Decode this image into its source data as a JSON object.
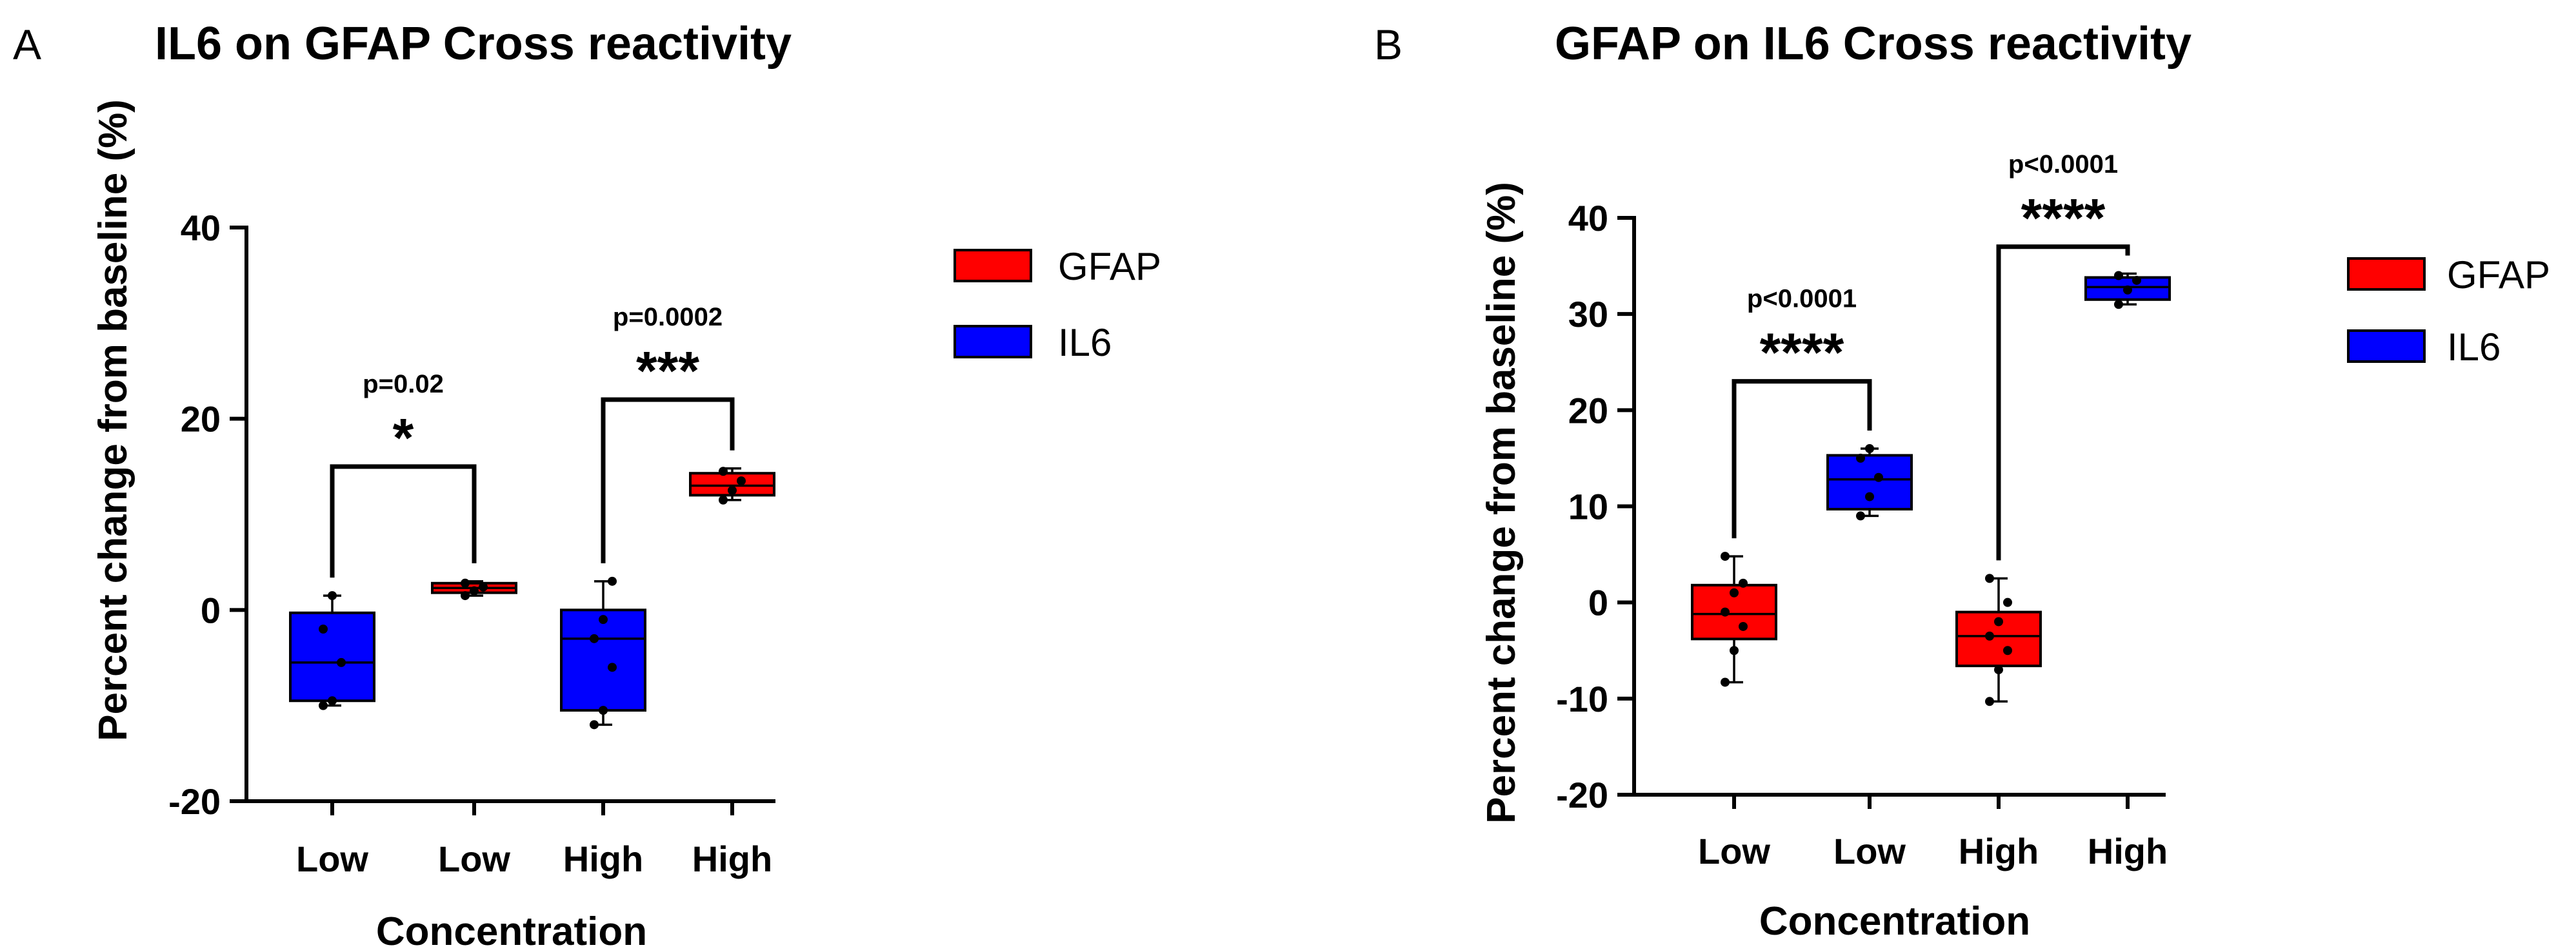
{
  "colors": {
    "GFAP": "#ff0000",
    "IL6": "#0000ff"
  },
  "chart_data": [
    {
      "type": "box",
      "panel": "A",
      "title": "IL6 on GFAP Cross reactivity",
      "xlabel": "Concentration",
      "ylabel": "Percent change from baseline  (%)",
      "ylim": [
        -20,
        40
      ],
      "yticks": [
        -20,
        0,
        20,
        40
      ],
      "grid": false,
      "legend_position": "right",
      "legend": [
        {
          "name": "GFAP",
          "color": "#ff0000"
        },
        {
          "name": "IL6",
          "color": "#0000ff"
        }
      ],
      "categories": [
        "Low",
        "Low",
        "High",
        "High"
      ],
      "boxes": [
        {
          "category": "Low",
          "series": "IL6",
          "min": -10,
          "q1": -9.5,
          "median": -5.5,
          "q3": -0.3,
          "max": 1.5,
          "points": [
            -10,
            -9.5,
            -5.5,
            -2,
            1.5
          ]
        },
        {
          "category": "Low",
          "series": "GFAP",
          "min": 1.5,
          "q1": 1.8,
          "median": 2.3,
          "q3": 2.8,
          "max": 3,
          "points": [
            1.5,
            2,
            2.4,
            2.8
          ]
        },
        {
          "category": "High",
          "series": "IL6",
          "min": -12,
          "q1": -10.5,
          "median": -3,
          "q3": 0,
          "max": 3,
          "points": [
            -12,
            -10.5,
            -6,
            -3,
            -1,
            3
          ]
        },
        {
          "category": "High",
          "series": "GFAP",
          "min": 11.5,
          "q1": 12,
          "median": 13,
          "q3": 14.3,
          "max": 14.8,
          "points": [
            11.5,
            12.5,
            13.5,
            14.5
          ]
        }
      ],
      "comparisons": [
        {
          "from": 0,
          "to": 1,
          "p": "p=0.02",
          "stars": "*",
          "y": 15
        },
        {
          "from": 2,
          "to": 3,
          "p": "p=0.0002",
          "stars": "***",
          "y": 22
        }
      ]
    },
    {
      "type": "box",
      "panel": "B",
      "title": "GFAP on IL6 Cross reactivity",
      "xlabel": "Concentration",
      "ylabel": "Percent change from baseline  (%)",
      "ylim": [
        -20,
        40
      ],
      "yticks": [
        -20,
        -10,
        0,
        10,
        20,
        30,
        40
      ],
      "grid": false,
      "legend_position": "right",
      "legend": [
        {
          "name": "GFAP",
          "color": "#ff0000"
        },
        {
          "name": "IL6",
          "color": "#0000ff"
        }
      ],
      "categories": [
        "Low",
        "Low",
        "High",
        "High"
      ],
      "boxes": [
        {
          "category": "Low",
          "series": "GFAP",
          "min": -8.3,
          "q1": -3.8,
          "median": -1.2,
          "q3": 1.8,
          "max": 4.8,
          "points": [
            -8.3,
            -5,
            -2.5,
            -1,
            1,
            2,
            4.8
          ]
        },
        {
          "category": "Low",
          "series": "IL6",
          "min": 9,
          "q1": 9.7,
          "median": 12.8,
          "q3": 15.3,
          "max": 16,
          "points": [
            9,
            11,
            13,
            15,
            16
          ]
        },
        {
          "category": "High",
          "series": "GFAP",
          "min": -10.3,
          "q1": -6.6,
          "median": -3.5,
          "q3": -1,
          "max": 2.5,
          "points": [
            -10.3,
            -7,
            -5,
            -3.5,
            -2,
            0,
            2.5
          ]
        },
        {
          "category": "High",
          "series": "IL6",
          "min": 31,
          "q1": 31.5,
          "median": 32.8,
          "q3": 33.8,
          "max": 34.2,
          "points": [
            31,
            32.5,
            33.5,
            34
          ]
        }
      ],
      "comparisons": [
        {
          "from": 0,
          "to": 1,
          "p": "p<0.0001",
          "stars": "****",
          "y": 23
        },
        {
          "from": 2,
          "to": 3,
          "p": "p<0.0001",
          "stars": "****",
          "y": 37
        }
      ]
    }
  ]
}
